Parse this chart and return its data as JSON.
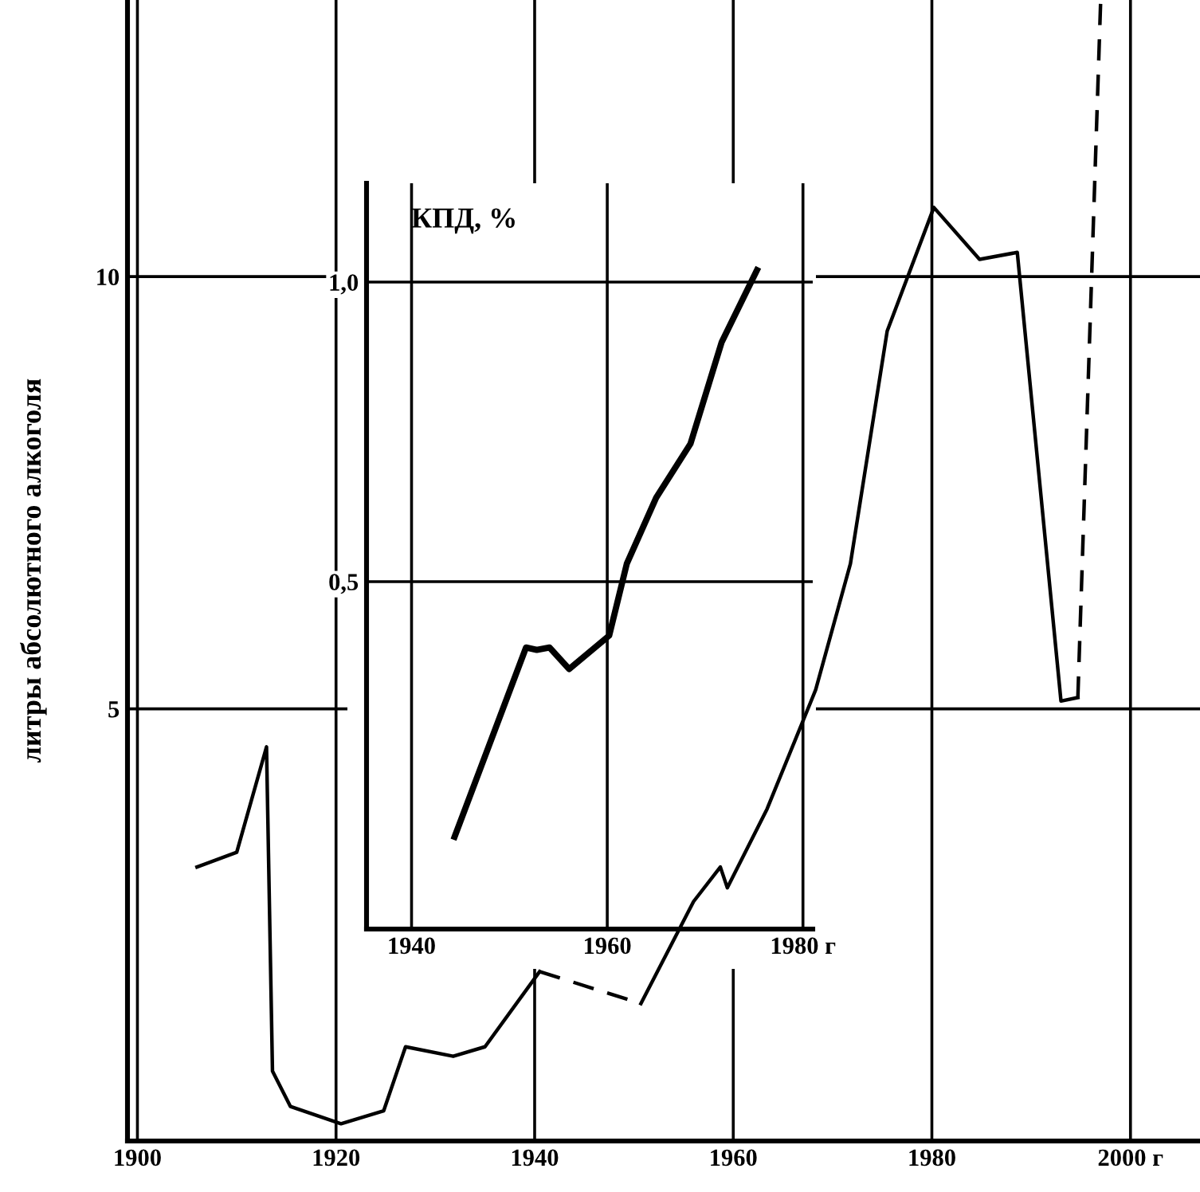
{
  "chart_data": [
    {
      "type": "line",
      "ylabel": "литры абсолютного алкоголя",
      "xlim": [
        1899,
        2007
      ],
      "ylim": [
        0,
        13.2
      ],
      "xticks": [
        1900,
        1920,
        1940,
        1960,
        1980,
        {
          "value": 2000,
          "label": "2000 г"
        }
      ],
      "yticks": [
        5,
        10
      ],
      "grid": true,
      "marker": "none",
      "series": [
        {
          "color": "#000000",
          "line_style": "solid",
          "x": [
            1906,
            1910,
            1913,
            1913.6,
            1915.4,
            1920.5,
            1924.8,
            1927,
            1931.8,
            1935,
            1940.5
          ],
          "values": [
            3.17,
            3.34,
            4.56,
            0.81,
            0.4,
            0.2,
            0.35,
            1.09,
            0.98,
            1.09,
            1.96
          ]
        },
        {
          "color": "#000000",
          "line_style": "dashed",
          "x": [
            1940.5,
            1950.7
          ],
          "values": [
            1.96,
            1.59
          ]
        },
        {
          "color": "#000000",
          "line_style": "solid",
          "x": [
            1950.7,
            1956,
            1958.7,
            1959.4,
            1963.4,
            1968.3,
            1971.8,
            1975.5,
            1980.2,
            1984.8,
            1988.6,
            1993,
            1994.7
          ],
          "values": [
            1.59,
            2.77,
            3.17,
            2.93,
            3.84,
            5.22,
            6.68,
            9.37,
            10.8,
            10.2,
            10.28,
            5.09,
            5.13
          ]
        },
        {
          "color": "#000000",
          "line_style": "dashed",
          "x": [
            1994.7,
            1997
          ],
          "values": [
            5.13,
            13.2
          ]
        }
      ]
    },
    {
      "type": "line",
      "title": "КПД, %",
      "xlim": [
        1935.4,
        1981
      ],
      "ylim": [
        -0.08,
        1.165
      ],
      "xticks": [
        1940,
        1960,
        {
          "value": 1980,
          "label": "1980 г"
        }
      ],
      "yticks": [
        {
          "value": 0.5,
          "label": "0,5"
        },
        {
          "value": 1.0,
          "label": "1,0"
        }
      ],
      "grid": true,
      "marker": "none",
      "series": [
        {
          "color": "#000000",
          "line_style": "solid",
          "x": [
            1944.4,
            1951.7,
            1952.8,
            1954.1,
            1956.1,
            1960.2,
            1962,
            1965,
            1968.5,
            1971.7,
            1975.3
          ],
          "values": [
            0.074,
            0.39,
            0.386,
            0.39,
            0.354,
            0.41,
            0.53,
            0.64,
            0.73,
            0.9,
            1.02
          ]
        }
      ]
    }
  ]
}
